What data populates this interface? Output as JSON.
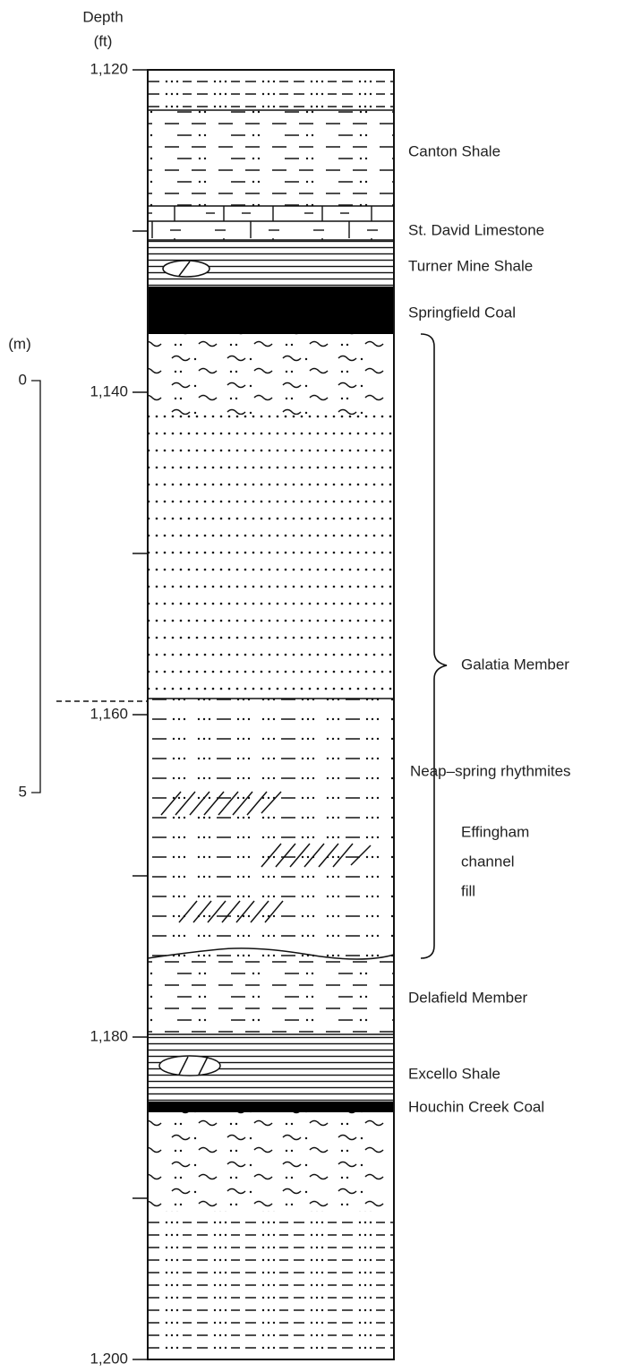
{
  "header": {
    "depth": "Depth",
    "unit": "(ft)"
  },
  "depth_ticks": [
    "1,120",
    "1,140",
    "1,160",
    "1,180",
    "1,200"
  ],
  "meter_scale": {
    "unit": "(m)",
    "ticks": [
      "0",
      "5"
    ]
  },
  "units": {
    "canton": "Canton Shale",
    "st_david": "St. David Limestone",
    "turner": "Turner Mine Shale",
    "springfield": "Springfield Coal",
    "galatia": "Galatia Member",
    "rhythmites": "Neap–spring rhythmites",
    "effingham": [
      "Effingham",
      "channel",
      "fill"
    ],
    "delafield": "Delafield Member",
    "excello": "Excello Shale",
    "houchin": "Houchin Creek Coal"
  }
}
